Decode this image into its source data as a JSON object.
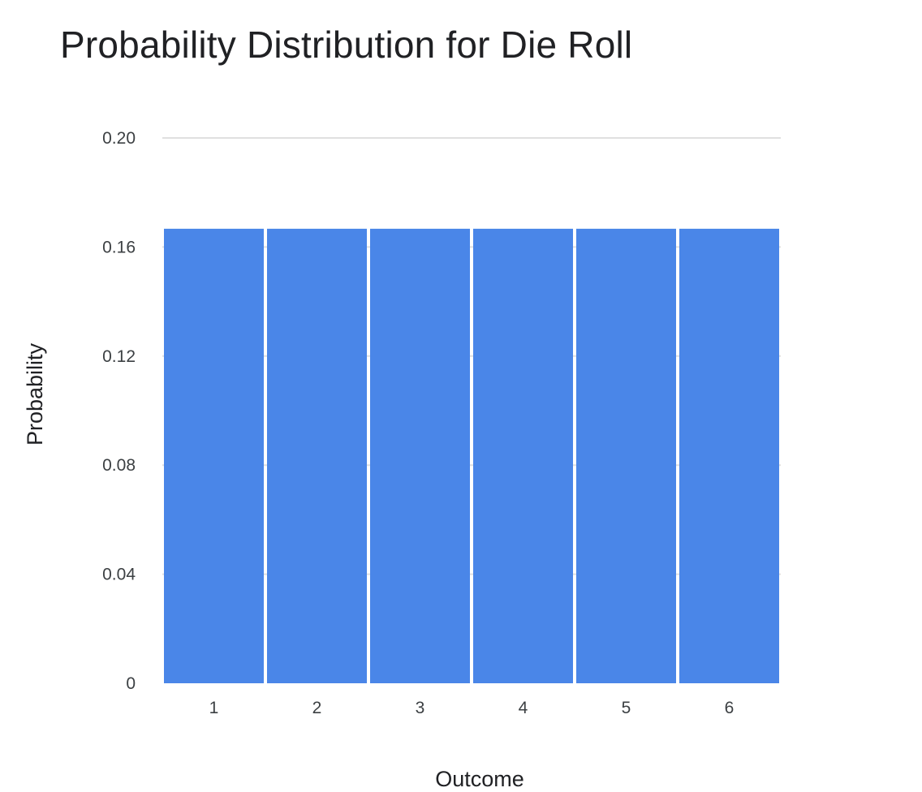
{
  "chart_data": {
    "type": "bar",
    "title": "Probability Distribution for Die Roll",
    "xlabel": "Outcome",
    "ylabel": "Probability",
    "categories": [
      "1",
      "2",
      "3",
      "4",
      "5",
      "6"
    ],
    "values": [
      0.1667,
      0.1667,
      0.1667,
      0.1667,
      0.1667,
      0.1667
    ],
    "ylim": [
      0,
      0.2
    ],
    "yticks": [
      "0",
      "0.04",
      "0.08",
      "0.12",
      "0.16",
      "0.20"
    ],
    "ytick_values": [
      0,
      0.04,
      0.08,
      0.12,
      0.16,
      0.2
    ],
    "grid": true,
    "legend": "none",
    "bar_color": "#4a86e8",
    "grid_color": "#e0e0e0"
  }
}
